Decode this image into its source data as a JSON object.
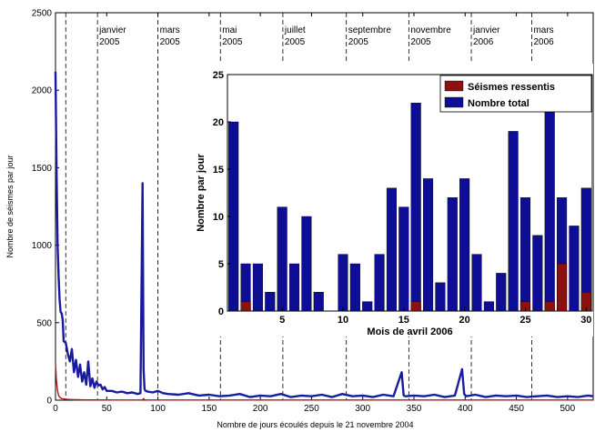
{
  "chart_data": [
    {
      "type": "line",
      "xlabel": "Nombre de jours écoulés depuis le 21 novembre 2004",
      "ylabel": "Nombre de séismes par jour",
      "xlim": [
        0,
        525
      ],
      "ylim": [
        0,
        2500
      ],
      "xticks": [
        0,
        50,
        100,
        150,
        200,
        250,
        300,
        350,
        400,
        450,
        500
      ],
      "yticks": [
        0,
        500,
        1000,
        1500,
        2000,
        2500
      ],
      "grid": false,
      "colors": {
        "total": "#1a1aa0",
        "felt": "#b01818"
      },
      "month_markers": [
        {
          "x": 10,
          "label": [
            "",
            ""
          ]
        },
        {
          "x": 41,
          "label": [
            "janvier",
            "2005"
          ]
        },
        {
          "x": 100,
          "label": [
            "mars",
            "2005"
          ]
        },
        {
          "x": 161,
          "label": [
            "mai",
            "2005"
          ]
        },
        {
          "x": 222,
          "label": [
            "juillet",
            "2005"
          ]
        },
        {
          "x": 284,
          "label": [
            "septembre",
            "2005"
          ]
        },
        {
          "x": 345,
          "label": [
            "novembre",
            "2005"
          ]
        },
        {
          "x": 406,
          "label": [
            "janvier",
            "2006"
          ]
        },
        {
          "x": 465,
          "label": [
            "mars",
            "2006"
          ]
        }
      ],
      "series": [
        {
          "x": [
            0,
            1,
            2,
            3,
            4,
            5,
            6,
            7,
            8,
            10,
            12,
            14,
            16,
            18,
            20,
            22,
            24,
            26,
            28,
            30,
            32,
            34,
            36,
            38,
            40,
            42,
            44,
            46,
            48,
            50,
            55,
            60,
            65,
            70,
            75,
            80,
            83,
            85,
            86,
            87,
            88,
            90,
            95,
            100,
            105,
            110,
            120,
            130,
            140,
            150,
            160,
            170,
            180,
            190,
            200,
            210,
            220,
            230,
            240,
            250,
            260,
            270,
            280,
            290,
            300,
            310,
            320,
            330,
            338,
            340,
            342,
            350,
            360,
            370,
            380,
            390,
            397,
            399,
            401,
            410,
            420,
            430,
            440,
            450,
            460,
            470,
            480,
            490,
            500,
            510,
            520,
            525
          ],
          "y": [
            2120,
            1500,
            1000,
            800,
            650,
            570,
            560,
            520,
            380,
            370,
            300,
            250,
            330,
            180,
            260,
            150,
            230,
            120,
            180,
            100,
            250,
            90,
            140,
            80,
            120,
            95,
            100,
            70,
            85,
            60,
            60,
            50,
            55,
            45,
            50,
            40,
            45,
            1400,
            200,
            70,
            60,
            55,
            50,
            60,
            45,
            40,
            35,
            45,
            30,
            35,
            25,
            30,
            40,
            20,
            30,
            25,
            40,
            20,
            30,
            25,
            35,
            20,
            40,
            25,
            30,
            20,
            35,
            25,
            180,
            30,
            25,
            30,
            25,
            35,
            20,
            30,
            200,
            40,
            25,
            35,
            20,
            30,
            25,
            30,
            20,
            25,
            30,
            20,
            25,
            20,
            30,
            25
          ]
        },
        {
          "x": [
            0,
            1,
            2,
            3,
            4,
            5,
            6,
            8,
            10,
            15,
            20,
            30,
            40,
            60,
            85,
            86,
            87,
            100,
            150,
            200,
            250,
            300,
            350,
            400,
            450,
            500,
            525
          ],
          "y": [
            240,
            120,
            60,
            30,
            20,
            15,
            10,
            8,
            6,
            4,
            3,
            2,
            2,
            1,
            2,
            10,
            2,
            1,
            1,
            1,
            1,
            1,
            1,
            1,
            1,
            1,
            1
          ]
        }
      ]
    },
    {
      "type": "bar",
      "xlabel": "Mois de avril 2006",
      "ylabel": "Nombre par jour",
      "xlim": [
        0.5,
        30.5
      ],
      "ylim": [
        0,
        25
      ],
      "xticks": [
        5,
        10,
        15,
        20,
        25,
        30
      ],
      "yticks": [
        0,
        5,
        10,
        15,
        20,
        25
      ],
      "legend_position": "top-right",
      "categories": [
        1,
        2,
        3,
        4,
        5,
        6,
        7,
        8,
        9,
        10,
        11,
        12,
        13,
        14,
        15,
        16,
        17,
        18,
        19,
        20,
        21,
        22,
        23,
        24,
        25,
        26,
        27,
        28,
        29,
        30
      ],
      "series": [
        {
          "name": "Séismes ressentis",
          "color": "#8b1010",
          "values": [
            0,
            1,
            0,
            0,
            0,
            0,
            0,
            0,
            0,
            0,
            0,
            0,
            0,
            0,
            0,
            1,
            0,
            0,
            0,
            0,
            0,
            0,
            0,
            0,
            1,
            0,
            1,
            5,
            0,
            2
          ]
        },
        {
          "name": "Nombre total",
          "color": "#0d0d96",
          "values": [
            20,
            5,
            5,
            2,
            11,
            5,
            10,
            2,
            0,
            6,
            5,
            1,
            6,
            13,
            11,
            22,
            14,
            3,
            12,
            14,
            6,
            1,
            4,
            19,
            12,
            8,
            23,
            12,
            9,
            13
          ]
        }
      ]
    }
  ]
}
